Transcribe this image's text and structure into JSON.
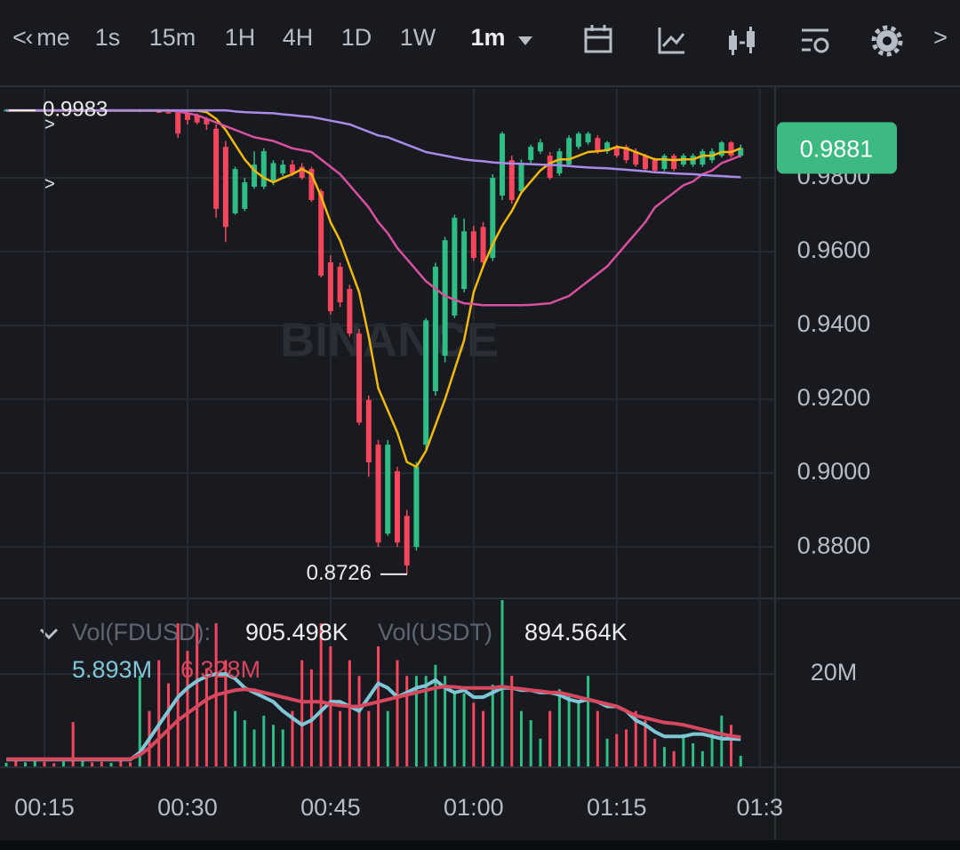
{
  "toolbar": {
    "tabs": [
      "me",
      "1s",
      "15m",
      "1H",
      "4H",
      "1D",
      "1W"
    ],
    "active": "1m"
  },
  "chart_data": [
    {
      "type": "candlestick",
      "watermark": "BINANCE",
      "up_color": "#2ebd85",
      "down_color": "#f6465d",
      "categories": [
        null,
        null,
        null,
        null,
        "00:15",
        null,
        null,
        null,
        null,
        null,
        null,
        null,
        null,
        null,
        null,
        null,
        null,
        null,
        null,
        "00:30",
        null,
        null,
        null,
        null,
        null,
        null,
        null,
        null,
        null,
        null,
        null,
        null,
        null,
        null,
        "00:45",
        null,
        null,
        null,
        null,
        null,
        null,
        null,
        null,
        null,
        null,
        null,
        null,
        null,
        null,
        "01:00",
        null,
        null,
        null,
        null,
        null,
        null,
        null,
        null,
        null,
        null,
        null,
        null,
        null,
        null,
        "01:15",
        null,
        null,
        null,
        null,
        null,
        null,
        null,
        null,
        null,
        null,
        null,
        null,
        null,
        null,
        "01:3"
      ],
      "open": [
        0.9983,
        0.9984,
        0.9982,
        0.9983,
        0.9985,
        0.9983,
        0.9982,
        0.9984,
        0.9983,
        0.9984,
        0.9983,
        0.9982,
        0.9984,
        0.9983,
        0.9981,
        0.9983,
        0.998,
        0.9978,
        0.9981,
        0.9975,
        0.9969,
        0.996,
        0.9933,
        0.9884,
        0.9704,
        0.9716,
        0.9776,
        0.9776,
        0.9788,
        0.9812,
        0.9836,
        0.983,
        0.9824,
        0.9764,
        0.9571,
        0.9559,
        0.9499,
        0.9378,
        0.9198,
        0.9077,
        0.8836,
        0.9005,
        0.8884,
        0.88,
        0.9077,
        0.9222,
        0.9318,
        0.9427,
        0.9499,
        0.9655,
        0.9667,
        0.9583,
        0.9752,
        0.9848,
        0.9764,
        0.9848,
        0.9872,
        0.986,
        0.9812,
        0.9836,
        0.9884,
        0.9896,
        0.9908,
        0.9872,
        0.9884,
        0.9884,
        0.9872,
        0.986,
        0.9848,
        0.9824,
        0.986,
        0.9836,
        0.9836,
        0.9836,
        0.9848,
        0.986,
        0.9896,
        0.986,
        null,
        null
      ],
      "high": [
        0.9986,
        0.9986,
        0.9985,
        0.9986,
        0.9987,
        0.9985,
        0.9985,
        0.9986,
        0.9986,
        0.9987,
        0.9985,
        0.9986,
        0.9986,
        0.9985,
        0.9984,
        0.9985,
        0.9983,
        0.9982,
        0.9983,
        0.998,
        0.9975,
        0.9965,
        0.9945,
        0.99,
        0.983,
        0.98,
        0.9872,
        0.988,
        0.9848,
        0.9848,
        0.9848,
        0.984,
        0.983,
        0.977,
        0.959,
        0.957,
        0.951,
        0.939,
        0.921,
        0.909,
        0.909,
        0.9017,
        0.89,
        0.903,
        0.942,
        0.957,
        0.964,
        0.97,
        0.969,
        0.967,
        0.968,
        0.981,
        0.9925,
        0.986,
        0.985,
        0.989,
        0.9905,
        0.987,
        0.988,
        0.9915,
        0.9925,
        0.9925,
        0.9915,
        0.99,
        0.989,
        0.989,
        0.988,
        0.9865,
        0.9855,
        0.9865,
        0.9865,
        0.9866,
        0.9866,
        0.9878,
        0.988,
        0.99,
        0.99,
        0.989,
        null,
        null
      ],
      "low": [
        0.998,
        0.9981,
        0.998,
        0.9981,
        0.9982,
        0.998,
        0.998,
        0.9982,
        0.9981,
        0.9982,
        0.9981,
        0.998,
        0.9982,
        0.998,
        0.9978,
        0.9979,
        0.9976,
        0.9974,
        0.9908,
        0.9945,
        0.9945,
        0.993,
        0.9692,
        0.9626,
        0.97,
        0.971,
        0.977,
        0.977,
        0.978,
        0.9805,
        0.9805,
        0.9795,
        0.9735,
        0.953,
        0.943,
        0.945,
        0.937,
        0.913,
        0.899,
        0.88,
        0.883,
        0.88,
        0.8726,
        0.879,
        0.906,
        0.921,
        0.93,
        0.942,
        0.949,
        0.9575,
        0.956,
        0.9575,
        0.974,
        0.973,
        0.9755,
        0.984,
        0.9865,
        0.9795,
        0.9805,
        0.983,
        0.9878,
        0.989,
        0.9865,
        0.9865,
        0.9855,
        0.984,
        0.983,
        0.9818,
        0.9815,
        0.9818,
        0.9818,
        0.983,
        0.983,
        0.983,
        0.984,
        0.9855,
        0.9855,
        0.9855,
        null,
        null
      ],
      "close": [
        0.9984,
        0.9982,
        0.9983,
        0.9985,
        0.9983,
        0.9982,
        0.9984,
        0.9983,
        0.9984,
        0.9983,
        0.9982,
        0.9984,
        0.9983,
        0.9981,
        0.9983,
        0.998,
        0.9978,
        0.9976,
        0.992,
        0.9957,
        0.995,
        0.9945,
        0.9716,
        0.9667,
        0.9824,
        0.9788,
        0.9836,
        0.9872,
        0.984,
        0.9836,
        0.9812,
        0.98,
        0.974,
        0.9535,
        0.9439,
        0.9463,
        0.9378,
        0.9137,
        0.9029,
        0.8812,
        0.9077,
        0.8812,
        0.875,
        0.9017,
        0.9414,
        0.9559,
        0.9631,
        0.9692,
        0.9655,
        0.9583,
        0.9571,
        0.98,
        0.992,
        0.974,
        0.9836,
        0.9884,
        0.9896,
        0.98,
        0.9872,
        0.9908,
        0.992,
        0.992,
        0.9872,
        0.9896,
        0.986,
        0.9848,
        0.9836,
        0.9824,
        0.982,
        0.986,
        0.9824,
        0.986,
        0.986,
        0.9872,
        0.9872,
        0.9896,
        0.986,
        0.9881,
        null,
        null
      ],
      "series": [
        {
          "color": "#f0b90b",
          "values": [
            0.9982,
            0.9982,
            0.9982,
            0.9982,
            0.9982,
            0.9982,
            0.9982,
            0.9982,
            0.9982,
            0.9982,
            0.9982,
            0.9982,
            0.9982,
            0.9982,
            0.9982,
            0.9982,
            0.9982,
            0.9982,
            0.9982,
            0.9982,
            0.9982,
            0.9978,
            0.996,
            0.993,
            0.989,
            0.985,
            0.982,
            0.98,
            0.9788,
            0.98,
            0.981,
            0.9824,
            0.981,
            0.975,
            0.968,
            0.963,
            0.956,
            0.949,
            0.937,
            0.923,
            0.917,
            0.911,
            0.903,
            0.9017,
            0.906,
            0.913,
            0.92,
            0.928,
            0.936,
            0.949,
            0.956,
            0.962,
            0.967,
            0.971,
            0.976,
            0.979,
            0.982,
            0.984,
            0.985,
            0.985,
            0.986,
            0.987,
            0.9872,
            0.9875,
            0.9884,
            0.988,
            0.987,
            0.986,
            0.985,
            0.985,
            0.9848,
            0.985,
            0.985,
            0.986,
            0.986,
            0.987,
            0.987,
            0.988,
            null,
            null
          ]
        },
        {
          "color": "#d9509f",
          "values": [
            0.9983,
            0.9983,
            0.9983,
            0.9983,
            0.9983,
            0.9983,
            0.9983,
            0.9983,
            0.9983,
            0.9983,
            0.9983,
            0.9983,
            0.9983,
            0.9983,
            0.9983,
            0.9983,
            0.9983,
            0.9983,
            0.998,
            0.9975,
            0.997,
            0.996,
            0.995,
            0.994,
            0.993,
            0.992,
            0.991,
            0.9905,
            0.99,
            0.989,
            0.988,
            0.9875,
            0.987,
            0.985,
            0.983,
            0.981,
            0.978,
            0.975,
            0.972,
            0.968,
            0.965,
            0.961,
            0.958,
            0.955,
            0.952,
            0.95,
            0.948,
            0.947,
            0.946,
            0.9458,
            0.9455,
            0.9455,
            0.9455,
            0.9455,
            0.9455,
            0.9456,
            0.9458,
            0.946,
            0.947,
            0.948,
            0.95,
            0.952,
            0.954,
            0.956,
            0.959,
            0.962,
            0.965,
            0.968,
            0.972,
            0.974,
            0.976,
            0.978,
            0.979,
            0.981,
            0.982,
            0.984,
            0.985,
            0.986,
            null,
            null
          ]
        },
        {
          "color": "#a88be8",
          "values": [
            0.9983,
            0.9983,
            0.9983,
            0.9983,
            0.9983,
            0.9983,
            0.9983,
            0.9983,
            0.9983,
            0.9983,
            0.9983,
            0.9983,
            0.9983,
            0.9983,
            0.9983,
            0.9983,
            0.9983,
            0.9983,
            0.9983,
            0.9983,
            0.9983,
            0.9983,
            0.9983,
            0.9983,
            0.998,
            0.9978,
            0.9977,
            0.9976,
            0.9975,
            0.9972,
            0.997,
            0.9967,
            0.9965,
            0.996,
            0.9955,
            0.995,
            0.9945,
            0.9935,
            0.9925,
            0.9915,
            0.991,
            0.99,
            0.989,
            0.988,
            0.987,
            0.9865,
            0.986,
            0.9855,
            0.985,
            0.9847,
            0.9845,
            0.9842,
            0.984,
            0.9839,
            0.9838,
            0.9837,
            0.9836,
            0.9835,
            0.9834,
            0.9832,
            0.983,
            0.9828,
            0.9827,
            0.9826,
            0.9824,
            0.9822,
            0.982,
            0.9818,
            0.9815,
            0.9814,
            0.9812,
            0.9811,
            0.981,
            0.9808,
            0.9806,
            0.9805,
            0.9803,
            0.9802,
            null,
            null
          ]
        }
      ],
      "ylim": [
        0.8663,
        1.0041
      ],
      "yticks": [
        {
          "value": 0.98,
          "label": "0.9800"
        },
        {
          "value": 0.96,
          "label": "0.9600"
        },
        {
          "value": 0.94,
          "label": "0.9400"
        },
        {
          "value": 0.92,
          "label": "0.9200"
        },
        {
          "value": 0.9,
          "label": "0.9000"
        },
        {
          "value": 0.88,
          "label": "0.8800"
        }
      ],
      "annotations": [
        {
          "value": 0.9983,
          "label": "0.9983"
        },
        {
          "value": 0.8726,
          "label": "0.8726"
        }
      ],
      "last_price": {
        "value": 0.9881,
        "label": "0.9881"
      },
      "grid": true
    },
    {
      "type": "bar",
      "legend": {
        "fdusd_label": "Vol(FDUSD):",
        "fdusd_value": "905.498K",
        "usdt_label": "Vol(USDT)",
        "usdt_value": "894.564K"
      },
      "values": [
        0.8,
        1.2,
        0.9,
        1.5,
        1.0,
        0.7,
        1.1,
        9.6,
        1.3,
        0.9,
        1.0,
        0.8,
        1.2,
        0.9,
        19.6,
        12,
        23,
        18,
        31,
        25,
        31,
        21,
        31,
        23,
        12,
        10,
        8,
        11,
        9,
        8,
        12,
        23,
        21,
        31,
        26,
        12,
        23,
        19.6,
        12,
        26,
        12,
        23,
        19.6,
        19.6,
        19.6,
        22,
        19.6,
        15.8,
        15.8,
        13.8,
        12,
        17.7,
        36,
        19.6,
        12,
        10,
        6,
        12,
        16.7,
        15.8,
        13.8,
        19.6,
        12,
        6,
        7,
        8,
        12,
        10,
        6,
        4.2,
        3.3,
        7,
        5,
        3.3,
        7,
        11,
        9,
        2.3,
        null,
        null
      ],
      "series": [
        {
          "color": "#7fc6d6",
          "legend_value": "5.893M",
          "values": [
            1.5,
            1.5,
            1.5,
            1.5,
            1.5,
            1.5,
            1.5,
            1.5,
            1.5,
            1.5,
            1.5,
            1.5,
            1.5,
            1.5,
            3,
            6,
            9,
            12,
            15,
            17,
            18.5,
            19.5,
            20,
            20,
            19,
            17,
            16,
            15,
            14,
            12,
            10.5,
            9,
            10,
            12,
            14,
            14,
            13,
            12,
            15,
            18,
            17,
            15,
            16,
            17,
            17.5,
            18.7,
            17,
            16,
            16.5,
            15,
            15,
            16,
            17,
            17,
            16.5,
            16.5,
            16,
            16,
            15.5,
            14.5,
            14,
            14.5,
            14,
            13,
            13,
            12,
            10,
            9,
            7.5,
            6.5,
            6.5,
            6.5,
            7,
            7,
            6.5,
            6,
            6,
            5.893,
            null,
            null
          ]
        },
        {
          "color": "#d9475e",
          "legend_value": "6.328M",
          "values": [
            1.6,
            1.6,
            1.6,
            1.6,
            1.6,
            1.6,
            1.6,
            1.6,
            1.6,
            1.6,
            1.6,
            1.6,
            1.6,
            1.6,
            2.5,
            4,
            6,
            8,
            10,
            11.5,
            13,
            14.5,
            15.5,
            16,
            16.5,
            16.7,
            16.5,
            16,
            15.5,
            15,
            14.5,
            14,
            14,
            14,
            13.5,
            13.2,
            13,
            13,
            13.5,
            14,
            14.5,
            15,
            15.5,
            16,
            16.5,
            17,
            17.3,
            17.2,
            17,
            17,
            17,
            17,
            17.3,
            17,
            16.8,
            16.5,
            16.3,
            16,
            16,
            15.5,
            15,
            14.5,
            14,
            13.5,
            13,
            12,
            11,
            10.5,
            10,
            9.5,
            9.3,
            9,
            8.5,
            8,
            7.5,
            7,
            6.6,
            6.328,
            null,
            null
          ]
        }
      ],
      "ylim": [
        0,
        36
      ],
      "yticks": [
        {
          "value": 20,
          "label": "20M"
        }
      ]
    }
  ]
}
